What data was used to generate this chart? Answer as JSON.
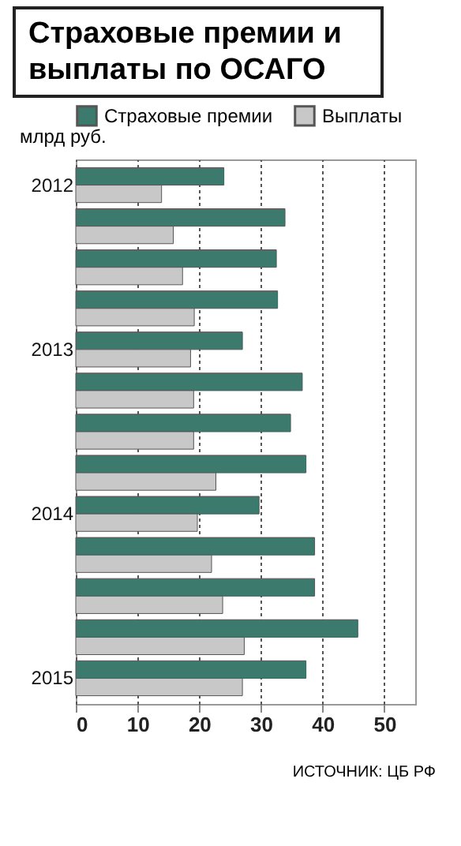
{
  "chart_data": {
    "type": "bar",
    "orientation": "horizontal",
    "title": "Страховые премии и выплаты по ОСАГО",
    "ylabel": "млрд руб.",
    "categories": [
      "2012",
      null,
      null,
      null,
      "2013",
      null,
      null,
      null,
      "2014",
      null,
      null,
      null,
      "2015"
    ],
    "series": [
      {
        "name": "Страховые премии",
        "color": "#3d7a6e",
        "values": [
          24.0,
          33.9,
          32.5,
          32.7,
          27.0,
          36.7,
          34.8,
          37.3,
          29.7,
          38.7,
          38.7,
          45.7,
          37.3
        ]
      },
      {
        "name": "Выплаты",
        "color": "#c8c8c8",
        "values": [
          13.9,
          15.8,
          17.3,
          19.2,
          18.6,
          19.1,
          19.1,
          22.7,
          19.7,
          22.0,
          23.8,
          27.3,
          27.0
        ]
      }
    ],
    "xlim": [
      0,
      55
    ],
    "xticks": [
      0,
      10,
      20,
      30,
      40,
      50
    ],
    "grid": "x",
    "legend": "top",
    "annotations": [
      "ИСТОЧНИК: ЦБ РФ"
    ]
  }
}
